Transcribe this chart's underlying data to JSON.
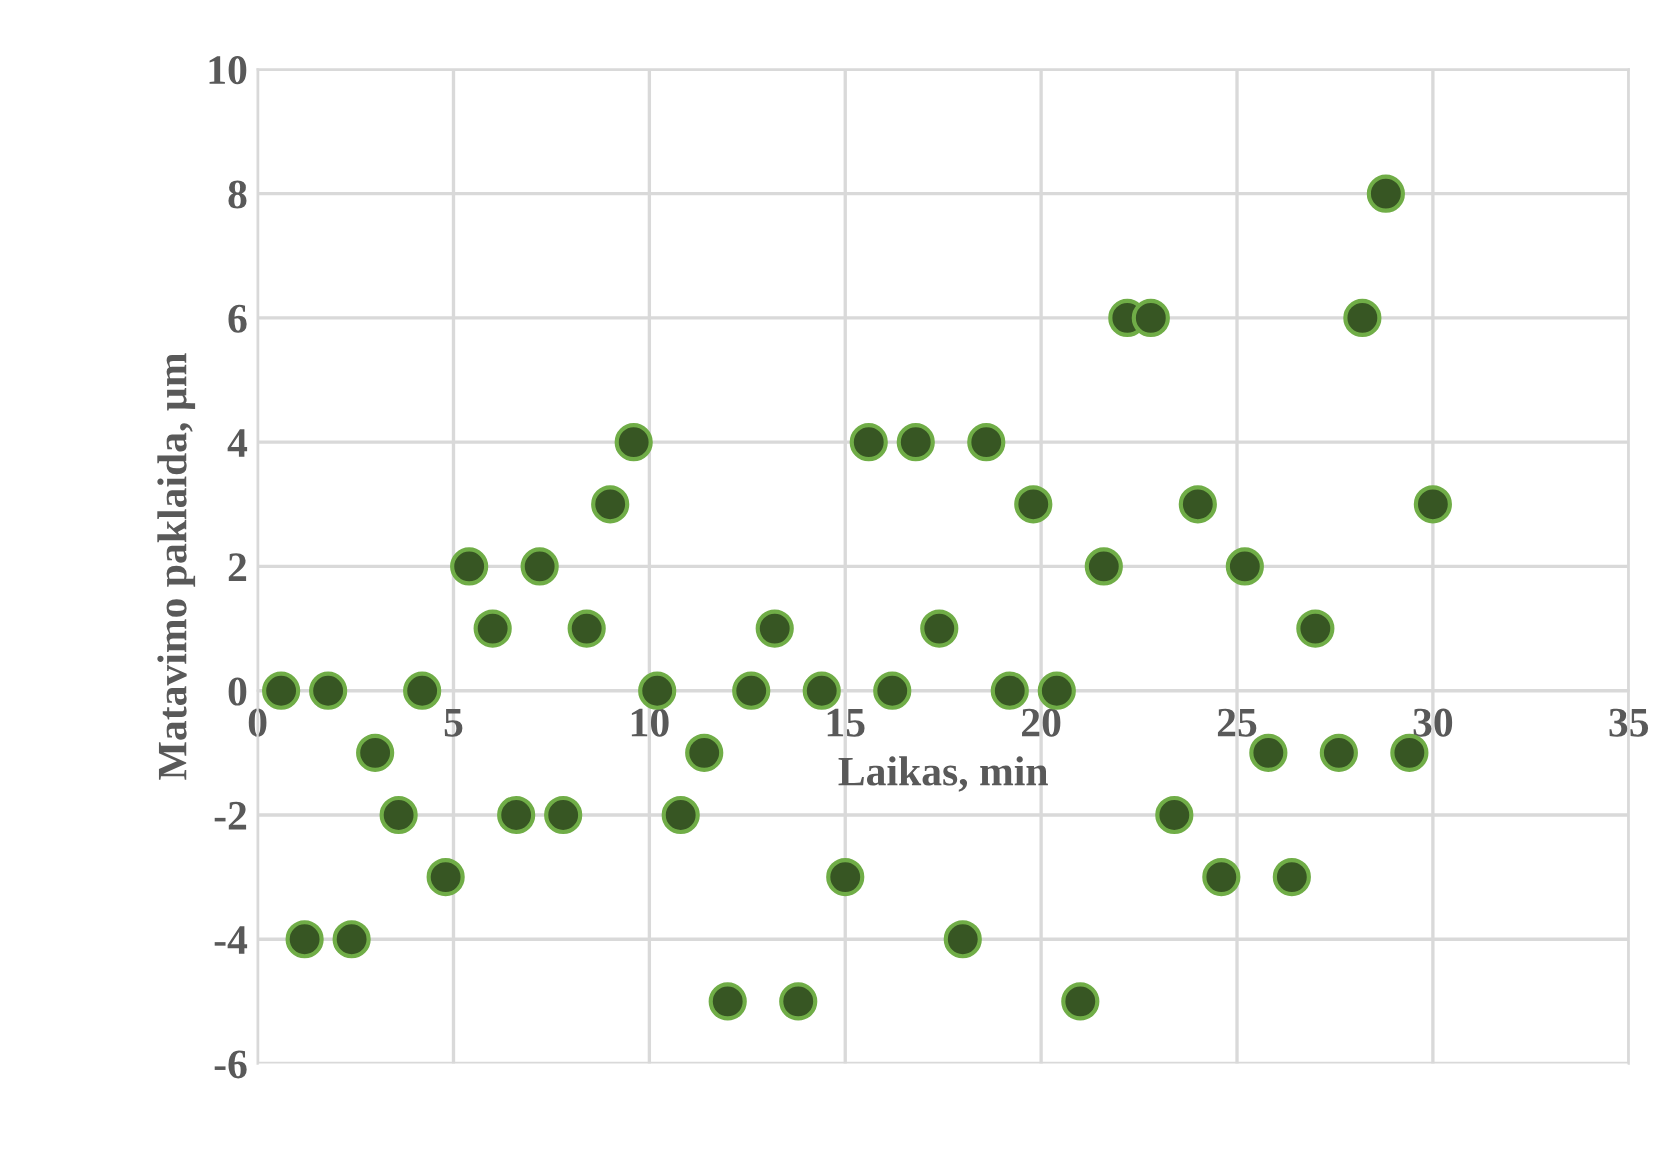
{
  "chart_data": {
    "type": "scatter",
    "xlabel": "Laikas, min",
    "ylabel": "Matavimo paklaida, µm",
    "x": [
      0.6,
      1.2,
      1.8,
      2.4,
      3,
      3.6,
      4.2,
      4.8,
      5.4,
      6,
      6.6,
      7.2,
      7.8,
      8.4,
      9,
      9.6,
      10.2,
      10.8,
      11.4,
      12,
      12.6,
      13.2,
      13.8,
      14.4,
      15,
      15.6,
      16.2,
      16.8,
      17.4,
      18,
      18.6,
      19.2,
      19.8,
      20.4,
      21,
      21.6,
      22.2,
      22.8,
      23.4,
      24,
      24.6,
      25.2,
      25.8,
      26.4,
      27,
      27.6,
      28.2,
      28.8,
      29.4,
      30
    ],
    "series": [
      {
        "color": "#375623",
        "values": [
          0,
          -4,
          0,
          -4,
          -1,
          -2,
          0,
          -3,
          2,
          1,
          -2,
          2,
          -2,
          1,
          3,
          4,
          0,
          -2,
          -1,
          -5,
          0,
          1,
          -5,
          0,
          -3,
          4,
          0,
          4,
          1,
          -4,
          4,
          0,
          3,
          0,
          -5,
          2,
          6,
          6,
          -2,
          3,
          -3,
          2,
          -1,
          -3,
          1,
          -1,
          6,
          8,
          -1,
          3
        ]
      }
    ],
    "xlim": [
      0,
      35
    ],
    "xticks": [
      0,
      5,
      10,
      15,
      20,
      25,
      30,
      35
    ],
    "ylim": [
      -6,
      10
    ],
    "yticks": [
      -6,
      -4,
      -2,
      0,
      2,
      4,
      6,
      8,
      10
    ],
    "grid": true,
    "marker": "circle",
    "legend": false
  }
}
